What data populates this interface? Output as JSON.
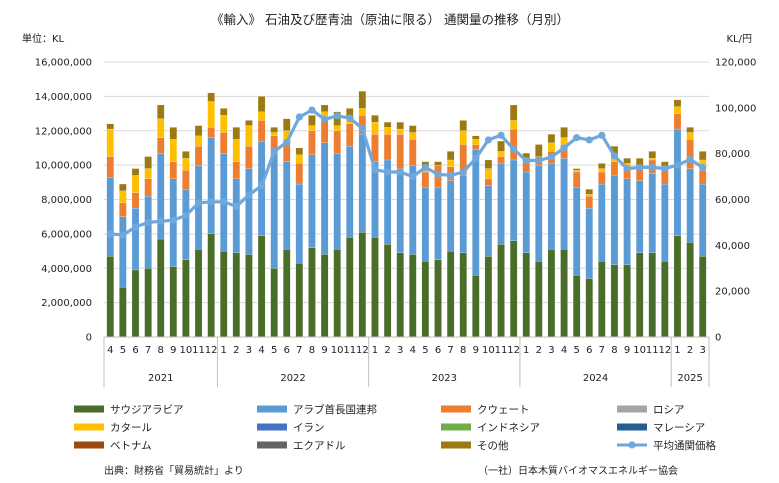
{
  "chart_data": {
    "type": "bar",
    "title": "《輸入》 石油及び歴青油（原油に限る） 通関量の推移（月別）",
    "ylabel_left": "単位：KL",
    "ylabel_right": "KL/円",
    "ylim": [
      0,
      16000000
    ],
    "y2lim": [
      0,
      120000
    ],
    "yticks": [
      "0",
      "2,000,000",
      "4,000,000",
      "6,000,000",
      "8,000,000",
      "10,000,000",
      "12,000,000",
      "14,000,000",
      "16,000,000"
    ],
    "y2ticks": [
      "0",
      "20,000",
      "40,000",
      "60,000",
      "80,000",
      "100,000",
      "120,000"
    ],
    "grid": true,
    "legend_position": "bottom",
    "categories": [
      "4",
      "5",
      "6",
      "7",
      "8",
      "9",
      "10",
      "11",
      "12",
      "1",
      "2",
      "3",
      "4",
      "5",
      "6",
      "7",
      "8",
      "9",
      "10",
      "11",
      "12",
      "1",
      "2",
      "3",
      "4",
      "5",
      "6",
      "7",
      "8",
      "9",
      "10",
      "11",
      "12",
      "1",
      "2",
      "3",
      "4",
      "5",
      "6",
      "7",
      "8",
      "9",
      "10",
      "11",
      "12",
      "1",
      "2",
      "3"
    ],
    "year_groups": [
      {
        "label": "2021",
        "start": 0,
        "end": 8
      },
      {
        "label": "2022",
        "start": 9,
        "end": 20
      },
      {
        "label": "2023",
        "start": 21,
        "end": 32
      },
      {
        "label": "2024",
        "start": 33,
        "end": 44
      },
      {
        "label": "2025",
        "start": 45,
        "end": 47
      }
    ],
    "stack_order": [
      "サウジアラビア",
      "アラブ首長国連邦",
      "クウェート",
      "カタール",
      "その他"
    ],
    "series": [
      {
        "name": "サウジアラビア",
        "color": "#4a6e2a",
        "values": [
          4700000,
          2900000,
          3900000,
          4000000,
          5700000,
          4100000,
          4500000,
          5100000,
          6000000,
          5000000,
          4900000,
          4800000,
          5900000,
          4000000,
          5100000,
          4300000,
          5200000,
          4800000,
          5100000,
          5800000,
          6100000,
          5800000,
          5400000,
          4900000,
          4800000,
          4400000,
          4500000,
          5000000,
          4900000,
          3600000,
          4700000,
          5400000,
          5600000,
          4900000,
          4400000,
          5100000,
          5100000,
          3600000,
          3400000,
          4400000,
          4200000,
          4200000,
          4900000,
          4900000,
          4400000,
          5900000,
          5500000,
          4700000
        ]
      },
      {
        "name": "アラブ首長国連邦",
        "color": "#5b9bd5",
        "values": [
          4600000,
          4100000,
          3600000,
          4200000,
          5000000,
          5100000,
          4100000,
          4900000,
          5600000,
          5700000,
          4300000,
          5000000,
          5500000,
          6700000,
          5100000,
          4600000,
          5400000,
          6500000,
          5600000,
          5300000,
          5700000,
          4400000,
          4900000,
          4900000,
          5200000,
          4300000,
          4200000,
          4100000,
          4500000,
          7300000,
          4100000,
          4700000,
          4700000,
          4700000,
          5600000,
          5000000,
          5300000,
          5100000,
          4100000,
          4500000,
          5200000,
          5000000,
          4200000,
          4600000,
          4500000,
          6200000,
          4300000,
          4200000
        ]
      },
      {
        "name": "クウェート",
        "color": "#ed7d31",
        "values": [
          1200000,
          800000,
          900000,
          1000000,
          900000,
          1000000,
          1100000,
          1100000,
          600000,
          1200000,
          1000000,
          1300000,
          1200000,
          1000000,
          1300000,
          1200000,
          1400000,
          1300000,
          1300000,
          1300000,
          1100000,
          1600000,
          1500000,
          2000000,
          1500000,
          900000,
          1300000,
          800000,
          1800000,
          300000,
          400000,
          400000,
          1800000,
          600000,
          500000,
          700000,
          800000,
          900000,
          700000,
          700000,
          800000,
          800000,
          800000,
          800000,
          900000,
          900000,
          1700000,
          800000
        ]
      },
      {
        "name": "カタール",
        "color": "#ffc000",
        "values": [
          1600000,
          700000,
          1000000,
          600000,
          1100000,
          1300000,
          700000,
          600000,
          1500000,
          1000000,
          1300000,
          1200000,
          500000,
          200000,
          500000,
          500000,
          300000,
          500000,
          300000,
          300000,
          400000,
          700000,
          400000,
          300000,
          400000,
          300000,
          0,
          400000,
          800000,
          300000,
          600000,
          300000,
          500000,
          0,
          0,
          500000,
          400000,
          100000,
          100000,
          200000,
          300000,
          100000,
          0,
          100000,
          0,
          400000,
          400000,
          600000
        ]
      },
      {
        "name": "その他",
        "color": "#9c7a12",
        "values": [
          300000,
          400000,
          400000,
          700000,
          800000,
          700000,
          400000,
          600000,
          500000,
          400000,
          700000,
          300000,
          900000,
          300000,
          700000,
          400000,
          600000,
          400000,
          800000,
          600000,
          1000000,
          400000,
          300000,
          400000,
          400000,
          300000,
          200000,
          500000,
          600000,
          200000,
          500000,
          600000,
          900000,
          500000,
          700000,
          500000,
          600000,
          100000,
          300000,
          300000,
          600000,
          300000,
          500000,
          400000,
          400000,
          400000,
          300000,
          500000
        ]
      }
    ],
    "line": {
      "name": "平均通関価格",
      "color": "#6fa8dc",
      "values": [
        45000,
        44500,
        48000,
        50000,
        50500,
        51000,
        53000,
        58500,
        59000,
        59000,
        57000,
        62000,
        66000,
        81000,
        85000,
        96000,
        99000,
        95000,
        96500,
        95500,
        91000,
        73000,
        72000,
        72000,
        70000,
        74000,
        71000,
        70500,
        72000,
        78000,
        86000,
        88000,
        82000,
        77000,
        77000,
        78500,
        82500,
        87000,
        86000,
        88000,
        79000,
        73500,
        74000,
        74000,
        73500,
        75000,
        77500,
        74000
      ]
    },
    "legend": [
      "サウジアラビア",
      "アラブ首長国連邦",
      "クウェート",
      "ロシア",
      "カタール",
      "イラン",
      "インドネシア",
      "マレーシア",
      "ベトナム",
      "エクアドル",
      "その他",
      "平均通関価格"
    ],
    "legend_colors": [
      "#4a6e2a",
      "#5b9bd5",
      "#ed7d31",
      "#a5a5a5",
      "#ffc000",
      "#4472c4",
      "#70ad47",
      "#255e91",
      "#9e480e",
      "#636363",
      "#9c7a12",
      "#6fa8dc"
    ]
  },
  "footer": {
    "source": "出典：財務省「貿易統計」より",
    "org": "（一社）日本木質バイオマスエネルギー協会"
  }
}
